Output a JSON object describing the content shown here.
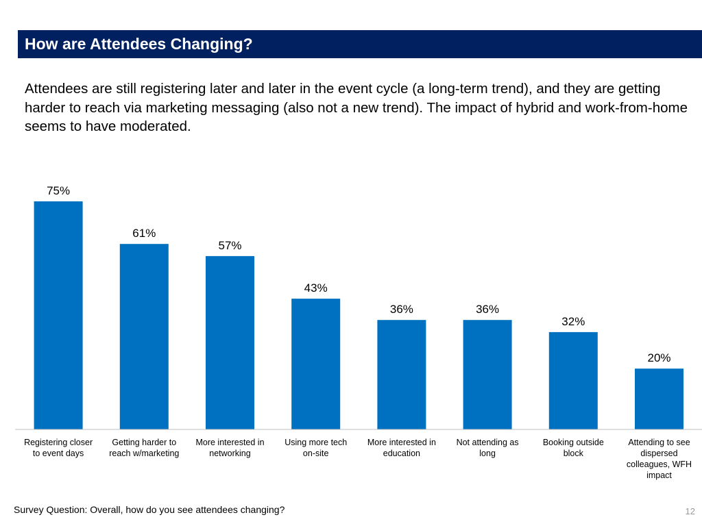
{
  "slide": {
    "title": "How are Attendees Changing?",
    "body": "Attendees are still registering later and later in the event cycle (a long-term trend), and they are getting harder to reach via marketing messaging (also not a new trend). The impact of hybrid and work-from-home seems to have moderated.",
    "footer": "Survey Question: Overall, how do you see attendees changing?",
    "page_number": "12"
  },
  "colors": {
    "title_bar": "#002060",
    "bar": "#0070C0",
    "axis": "#BFBFBF"
  },
  "chart_data": {
    "type": "bar",
    "title": "",
    "xlabel": "",
    "ylabel": "",
    "ylim": [
      0,
      75
    ],
    "grid": false,
    "categories": [
      [
        "Registering closer",
        "to event days"
      ],
      [
        "Getting harder to",
        "reach w/marketing"
      ],
      [
        "More interested in",
        "networking"
      ],
      [
        "Using more tech",
        "on-site"
      ],
      [
        "More interested in",
        "education"
      ],
      [
        "Not attending as",
        "long"
      ],
      [
        "Booking outside",
        "block"
      ],
      [
        "Attending to see",
        "dispersed",
        "colleagues, WFH",
        "impact"
      ]
    ],
    "values": [
      75,
      61,
      57,
      43,
      36,
      36,
      32,
      20
    ],
    "value_labels": [
      "75%",
      "61%",
      "57%",
      "43%",
      "36%",
      "36%",
      "32%",
      "20%"
    ]
  }
}
